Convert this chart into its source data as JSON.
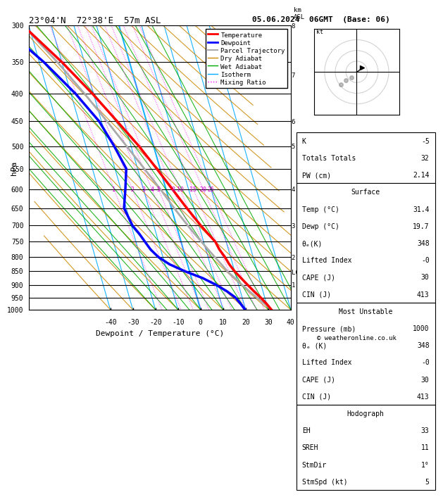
{
  "title_main": "23°04'N  72°38'E  57m ASL",
  "title_date": "05.06.2024  06GMT  (Base: 06)",
  "xlabel": "Dewpoint / Temperature (°C)",
  "ylabel_left": "hPa",
  "pressure_ticks_major": [
    300,
    350,
    400,
    450,
    500,
    550,
    600,
    650,
    700,
    750,
    800,
    850,
    900,
    950,
    1000
  ],
  "temp_ticks": [
    -40,
    -30,
    -20,
    -10,
    0,
    10,
    20,
    30,
    40
  ],
  "km_ticks": [
    1,
    2,
    3,
    4,
    5,
    6,
    7,
    8
  ],
  "km_pressures": [
    900,
    800,
    700,
    600,
    500,
    450,
    370,
    300
  ],
  "lcl_pressure": 853,
  "temperature_profile": {
    "pressure": [
      1000,
      975,
      950,
      925,
      900,
      875,
      850,
      825,
      800,
      775,
      750,
      725,
      700,
      650,
      600,
      550,
      500,
      450,
      400,
      350,
      300
    ],
    "temp": [
      31.4,
      30.0,
      28.2,
      26.0,
      24.0,
      22.0,
      20.0,
      18.5,
      17.5,
      16.0,
      15.2,
      13.0,
      10.8,
      6.8,
      2.8,
      -1.5,
      -6.5,
      -13.0,
      -20.5,
      -30.0,
      -42.5
    ]
  },
  "dewpoint_profile": {
    "pressure": [
      1000,
      975,
      950,
      925,
      900,
      875,
      850,
      825,
      800,
      775,
      750,
      725,
      700,
      650,
      600,
      550,
      500,
      450,
      400,
      350,
      300
    ],
    "dewp": [
      19.7,
      18.5,
      17.0,
      14.0,
      10.0,
      5.0,
      -2.0,
      -8.0,
      -12.0,
      -14.5,
      -16.0,
      -17.5,
      -19.5,
      -21.0,
      -18.0,
      -15.0,
      -17.5,
      -21.0,
      -28.0,
      -38.0,
      -52.0
    ]
  },
  "parcel_profile": {
    "pressure": [
      1000,
      975,
      950,
      925,
      900,
      875,
      853,
      825,
      800,
      750,
      700,
      650,
      600,
      550,
      500,
      450,
      400,
      350,
      300
    ],
    "temp": [
      31.4,
      29.0,
      26.5,
      24.0,
      21.5,
      19.2,
      17.0,
      15.0,
      13.0,
      9.0,
      5.0,
      1.2,
      -2.5,
      -7.0,
      -12.0,
      -17.5,
      -24.0,
      -32.0,
      -42.5
    ]
  },
  "colors": {
    "temperature": "#ff0000",
    "dewpoint": "#0000ff",
    "parcel": "#aaaaaa",
    "dry_adiabat": "#cc8800",
    "wet_adiabat": "#00aa00",
    "isotherm": "#00aaff",
    "mixing_ratio": "#ff00ff",
    "background": "#ffffff",
    "grid": "#000000"
  },
  "stats": {
    "K": "-5",
    "Totals Totals": "32",
    "PW (cm)": "2.14",
    "Temp (C)": "31.4",
    "Dewp (C)": "19.7",
    "theta_e_surf": "348",
    "Lifted Index surf": "-0",
    "CAPE surf": "30",
    "CIN surf": "413",
    "Pressure mu": "1000",
    "theta_e_mu": "348",
    "Lifted Index mu": "-0",
    "CAPE mu": "30",
    "CIN mu": "413",
    "EH": "33",
    "SREH": "11",
    "StmDir": "1°",
    "StmSpd": "5"
  },
  "copyright": "© weatheronline.co.uk"
}
